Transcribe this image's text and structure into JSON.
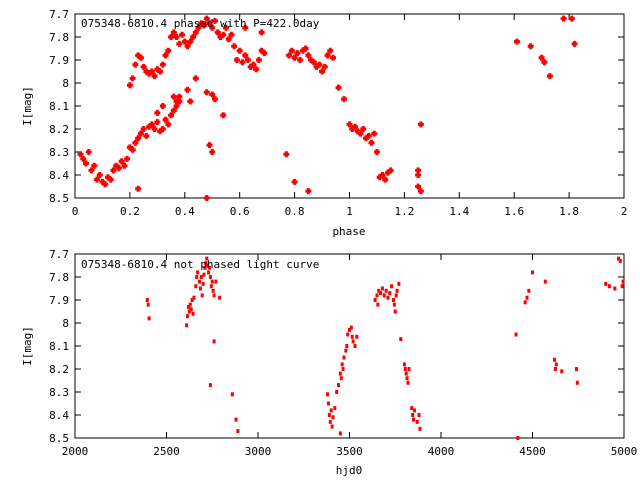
{
  "colors": {
    "points": "#ff0000",
    "axes": "#000000",
    "background": "#ffffff"
  },
  "chart_data": [
    {
      "type": "scatter",
      "title": "075348-6810.4 phased with P=422.0day",
      "xlabel": "phase",
      "ylabel": "I[mag]",
      "xlim": [
        0,
        2
      ],
      "ylim": [
        8.5,
        7.7
      ],
      "y_inverted": true,
      "grid": false,
      "x_ticks": [
        "0",
        "0.2",
        "0.4",
        "0.6",
        "0.8",
        "1",
        "1.2",
        "1.4",
        "1.6",
        "1.8",
        "2"
      ],
      "y_ticks": [
        "7.7",
        "7.8",
        "7.9",
        "8",
        "8.1",
        "8.2",
        "8.3",
        "8.4",
        "8.5"
      ],
      "series": [
        {
          "marker": "cross",
          "points": [
            [
              0.02,
              8.31
            ],
            [
              0.03,
              8.33
            ],
            [
              0.04,
              8.35
            ],
            [
              0.05,
              8.3
            ],
            [
              0.06,
              8.38
            ],
            [
              0.07,
              8.36
            ],
            [
              0.08,
              8.42
            ],
            [
              0.09,
              8.4
            ],
            [
              0.1,
              8.43
            ],
            [
              0.11,
              8.44
            ],
            [
              0.12,
              8.41
            ],
            [
              0.13,
              8.42
            ],
            [
              0.14,
              8.38
            ],
            [
              0.15,
              8.36
            ],
            [
              0.16,
              8.37
            ],
            [
              0.17,
              8.34
            ],
            [
              0.18,
              8.36
            ],
            [
              0.19,
              8.33
            ],
            [
              0.2,
              8.28
            ],
            [
              0.21,
              8.29
            ],
            [
              0.22,
              8.26
            ],
            [
              0.23,
              8.24
            ],
            [
              0.24,
              8.22
            ],
            [
              0.25,
              8.2
            ],
            [
              0.26,
              8.23
            ],
            [
              0.27,
              8.19
            ],
            [
              0.28,
              8.18
            ],
            [
              0.29,
              8.2
            ],
            [
              0.3,
              8.17
            ],
            [
              0.31,
              8.21
            ],
            [
              0.32,
              8.2
            ],
            [
              0.33,
              8.16
            ],
            [
              0.34,
              8.18
            ],
            [
              0.35,
              8.14
            ],
            [
              0.36,
              8.12
            ],
            [
              0.37,
              8.1
            ],
            [
              0.38,
              8.08
            ],
            [
              0.2,
              8.01
            ],
            [
              0.21,
              7.98
            ],
            [
              0.22,
              7.92
            ],
            [
              0.23,
              7.88
            ],
            [
              0.24,
              7.89
            ],
            [
              0.25,
              7.93
            ],
            [
              0.26,
              7.95
            ],
            [
              0.27,
              7.96
            ],
            [
              0.28,
              7.95
            ],
            [
              0.29,
              7.97
            ],
            [
              0.3,
              7.94
            ],
            [
              0.31,
              7.95
            ],
            [
              0.32,
              7.92
            ],
            [
              0.33,
              7.88
            ],
            [
              0.34,
              7.86
            ],
            [
              0.35,
              7.8
            ],
            [
              0.36,
              7.78
            ],
            [
              0.37,
              7.8
            ],
            [
              0.38,
              7.83
            ],
            [
              0.39,
              7.79
            ],
            [
              0.4,
              7.82
            ],
            [
              0.41,
              7.84
            ],
            [
              0.42,
              7.82
            ],
            [
              0.43,
              7.8
            ],
            [
              0.44,
              7.78
            ],
            [
              0.45,
              7.76
            ],
            [
              0.46,
              7.74
            ],
            [
              0.47,
              7.75
            ],
            [
              0.48,
              7.72
            ],
            [
              0.49,
              7.74
            ],
            [
              0.5,
              7.76
            ],
            [
              0.51,
              7.73
            ],
            [
              0.52,
              7.78
            ],
            [
              0.53,
              7.8
            ],
            [
              0.54,
              7.79
            ],
            [
              0.55,
              7.76
            ],
            [
              0.56,
              7.81
            ],
            [
              0.57,
              7.79
            ],
            [
              0.58,
              7.84
            ],
            [
              0.59,
              7.9
            ],
            [
              0.6,
              7.86
            ],
            [
              0.61,
              7.91
            ],
            [
              0.62,
              7.88
            ],
            [
              0.63,
              7.9
            ],
            [
              0.64,
              7.93
            ],
            [
              0.65,
              7.92
            ],
            [
              0.66,
              7.94
            ],
            [
              0.67,
              7.9
            ],
            [
              0.68,
              7.86
            ],
            [
              0.69,
              7.87
            ],
            [
              0.78,
              7.88
            ],
            [
              0.79,
              7.86
            ],
            [
              0.8,
              7.89
            ],
            [
              0.81,
              7.87
            ],
            [
              0.82,
              7.9
            ],
            [
              0.83,
              7.86
            ],
            [
              0.84,
              7.85
            ],
            [
              0.85,
              7.88
            ],
            [
              0.86,
              7.9
            ],
            [
              0.87,
              7.91
            ],
            [
              0.88,
              7.93
            ],
            [
              0.89,
              7.92
            ],
            [
              0.9,
              7.95
            ],
            [
              0.91,
              7.93
            ],
            [
              0.92,
              7.88
            ],
            [
              0.93,
              7.86
            ],
            [
              0.94,
              7.89
            ],
            [
              1.0,
              8.18
            ],
            [
              1.01,
              8.2
            ],
            [
              1.02,
              8.19
            ],
            [
              1.03,
              8.21
            ],
            [
              1.04,
              8.22
            ],
            [
              1.05,
              8.2
            ],
            [
              1.06,
              8.24
            ],
            [
              1.07,
              8.23
            ],
            [
              1.08,
              8.26
            ],
            [
              1.09,
              8.22
            ],
            [
              1.1,
              8.3
            ],
            [
              1.11,
              8.41
            ],
            [
              1.12,
              8.4
            ],
            [
              1.13,
              8.42
            ],
            [
              1.14,
              8.39
            ],
            [
              1.15,
              8.38
            ],
            [
              1.25,
              8.38
            ],
            [
              1.25,
              8.4
            ],
            [
              1.25,
              8.45
            ],
            [
              1.26,
              8.47
            ],
            [
              1.26,
              8.18
            ],
            [
              0.23,
              8.46
            ],
            [
              0.3,
              8.13
            ],
            [
              0.32,
              8.1
            ],
            [
              0.36,
              8.06
            ],
            [
              0.37,
              8.08
            ],
            [
              0.38,
              8.06
            ],
            [
              0.41,
              8.03
            ],
            [
              0.42,
              8.08
            ],
            [
              0.44,
              7.98
            ],
            [
              0.48,
              8.04
            ],
            [
              0.49,
              8.27
            ],
            [
              0.5,
              8.05
            ],
            [
              0.51,
              8.07
            ],
            [
              0.54,
              8.14
            ],
            [
              0.48,
              8.5
            ],
            [
              0.5,
              8.3
            ],
            [
              0.77,
              8.31
            ],
            [
              0.8,
              8.43
            ],
            [
              0.85,
              8.47
            ],
            [
              0.96,
              8.02
            ],
            [
              0.98,
              8.07
            ],
            [
              0.62,
              7.76
            ],
            [
              0.68,
              7.78
            ],
            [
              1.61,
              7.82
            ],
            [
              1.66,
              7.84
            ],
            [
              1.7,
              7.89
            ],
            [
              1.71,
              7.91
            ],
            [
              1.73,
              7.97
            ],
            [
              1.78,
              7.72
            ],
            [
              1.81,
              7.72
            ],
            [
              1.82,
              7.83
            ]
          ]
        }
      ]
    },
    {
      "type": "scatter",
      "title": "075348-6810.4 not phased light curve",
      "xlabel": "hjd0",
      "ylabel": "I[mag]",
      "xlim": [
        2000,
        5000
      ],
      "ylim": [
        8.5,
        7.7
      ],
      "y_inverted": true,
      "grid": false,
      "x_ticks": [
        "2000",
        "2500",
        "3000",
        "3500",
        "4000",
        "4500",
        "5000"
      ],
      "y_ticks": [
        "7.7",
        "7.8",
        "7.9",
        "8",
        "8.1",
        "8.2",
        "8.3",
        "8.4",
        "8.5"
      ],
      "series": [
        {
          "marker": "dot",
          "points": [
            [
              2395,
              7.9
            ],
            [
              2400,
              7.92
            ],
            [
              2405,
              7.98
            ],
            [
              2610,
              8.01
            ],
            [
              2615,
              7.97
            ],
            [
              2620,
              7.93
            ],
            [
              2625,
              7.95
            ],
            [
              2630,
              7.92
            ],
            [
              2635,
              7.94
            ],
            [
              2640,
              7.9
            ],
            [
              2645,
              7.96
            ],
            [
              2650,
              7.89
            ],
            [
              2660,
              7.84
            ],
            [
              2665,
              7.8
            ],
            [
              2670,
              7.78
            ],
            [
              2680,
              7.82
            ],
            [
              2685,
              7.85
            ],
            [
              2690,
              7.8
            ],
            [
              2695,
              7.88
            ],
            [
              2700,
              7.83
            ],
            [
              2705,
              7.79
            ],
            [
              2710,
              7.76
            ],
            [
              2715,
              7.74
            ],
            [
              2720,
              7.72
            ],
            [
              2725,
              7.75
            ],
            [
              2730,
              7.78
            ],
            [
              2735,
              7.76
            ],
            [
              2740,
              7.8
            ],
            [
              2745,
              7.84
            ],
            [
              2750,
              7.82
            ],
            [
              2755,
              7.86
            ],
            [
              2760,
              7.88
            ],
            [
              2770,
              7.82
            ],
            [
              2790,
              7.89
            ],
            [
              2760,
              8.08
            ],
            [
              2740,
              8.27
            ],
            [
              2860,
              8.31
            ],
            [
              2880,
              8.42
            ],
            [
              2890,
              8.47
            ],
            [
              3380,
              8.31
            ],
            [
              3385,
              8.35
            ],
            [
              3390,
              8.4
            ],
            [
              3395,
              8.43
            ],
            [
              3400,
              8.38
            ],
            [
              3405,
              8.45
            ],
            [
              3410,
              8.41
            ],
            [
              3420,
              8.37
            ],
            [
              3430,
              8.3
            ],
            [
              3440,
              8.27
            ],
            [
              3450,
              8.22
            ],
            [
              3455,
              8.24
            ],
            [
              3460,
              8.18
            ],
            [
              3465,
              8.2
            ],
            [
              3470,
              8.15
            ],
            [
              3480,
              8.12
            ],
            [
              3485,
              8.1
            ],
            [
              3490,
              8.05
            ],
            [
              3500,
              8.03
            ],
            [
              3510,
              8.02
            ],
            [
              3515,
              8.06
            ],
            [
              3520,
              8.08
            ],
            [
              3530,
              8.1
            ],
            [
              3540,
              8.06
            ],
            [
              3450,
              8.48
            ],
            [
              3640,
              7.9
            ],
            [
              3650,
              7.88
            ],
            [
              3655,
              7.92
            ],
            [
              3660,
              7.86
            ],
            [
              3670,
              7.87
            ],
            [
              3680,
              7.85
            ],
            [
              3690,
              7.88
            ],
            [
              3700,
              7.86
            ],
            [
              3710,
              7.89
            ],
            [
              3720,
              7.87
            ],
            [
              3730,
              7.84
            ],
            [
              3740,
              7.9
            ],
            [
              3745,
              7.92
            ],
            [
              3750,
              7.95
            ],
            [
              3755,
              7.88
            ],
            [
              3760,
              7.86
            ],
            [
              3770,
              7.83
            ],
            [
              3780,
              8.07
            ],
            [
              3800,
              8.18
            ],
            [
              3805,
              8.2
            ],
            [
              3810,
              8.22
            ],
            [
              3815,
              8.24
            ],
            [
              3820,
              8.26
            ],
            [
              3825,
              8.2
            ],
            [
              3840,
              8.37
            ],
            [
              3845,
              8.4
            ],
            [
              3850,
              8.42
            ],
            [
              3855,
              8.38
            ],
            [
              3870,
              8.43
            ],
            [
              3880,
              8.4
            ],
            [
              3885,
              8.46
            ],
            [
              4410,
              8.05
            ],
            [
              4420,
              8.5
            ],
            [
              4460,
              7.91
            ],
            [
              4470,
              7.89
            ],
            [
              4480,
              7.86
            ],
            [
              4500,
              7.78
            ],
            [
              4570,
              7.82
            ],
            [
              4620,
              8.16
            ],
            [
              4625,
              8.2
            ],
            [
              4630,
              8.18
            ],
            [
              4660,
              8.21
            ],
            [
              4740,
              8.2
            ],
            [
              4745,
              8.26
            ],
            [
              4900,
              7.83
            ],
            [
              4920,
              7.84
            ],
            [
              4950,
              7.85
            ],
            [
              4970,
              7.72
            ],
            [
              4980,
              7.73
            ],
            [
              4990,
              7.84
            ],
            [
              4995,
              7.82
            ]
          ]
        }
      ]
    }
  ]
}
